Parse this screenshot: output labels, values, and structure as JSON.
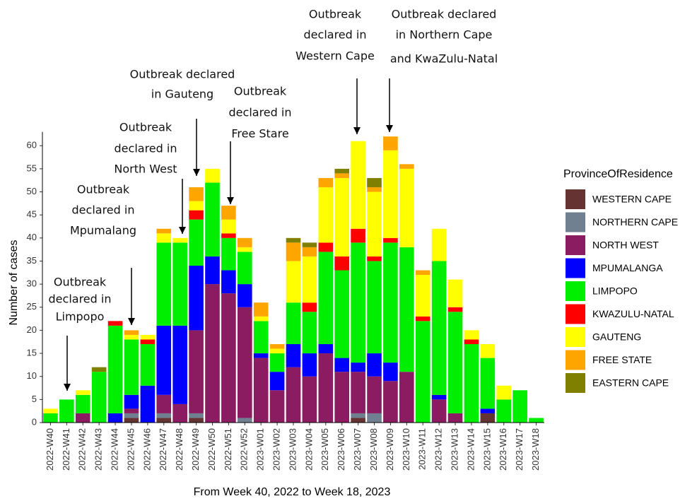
{
  "chart_data": {
    "type": "stacked-bar",
    "x_label": "From Week 40, 2022 to Week 18, 2023",
    "y_label": "Number of cases",
    "legend_title": "ProvinceOfResidence",
    "categories": [
      "2022-W40",
      "2022-W41",
      "2022-W42",
      "2022-W43",
      "2022-W44",
      "2022-W45",
      "2022-W46",
      "2022-W47",
      "2022-W48",
      "2022-W49",
      "2022-W50",
      "2022-W51",
      "2022-W52",
      "2023-W01",
      "2023-W02",
      "2023-W03",
      "2023-W04",
      "2023-W05",
      "2023-W06",
      "2023-W07",
      "2023-W08",
      "2023-W09",
      "2023-W10",
      "2023-W11",
      "2023-W12",
      "2023-W13",
      "2023-W14",
      "2023-W15",
      "2023-W16",
      "2023-W17",
      "2023-W18"
    ],
    "series": [
      {
        "name": "WESTERN CAPE",
        "color": "#663333",
        "values": [
          0,
          0,
          0,
          0,
          0,
          1,
          0,
          1,
          0,
          1,
          0,
          0,
          0,
          0,
          0,
          0,
          0,
          0,
          0,
          1,
          0,
          0,
          0,
          0,
          0,
          0,
          0,
          2,
          0,
          0,
          0
        ]
      },
      {
        "name": "NORTHERN CAPE",
        "color": "#708090",
        "values": [
          0,
          0,
          0,
          0,
          0,
          1,
          0,
          1,
          0,
          1,
          0,
          0,
          1,
          0,
          0,
          0,
          0,
          0,
          0,
          1,
          2,
          0,
          0,
          0,
          0,
          0,
          0,
          0,
          0,
          0,
          0
        ]
      },
      {
        "name": "NORTH WEST",
        "color": "#8b1c62",
        "values": [
          0,
          0,
          2,
          0,
          0,
          1,
          0,
          4,
          4,
          18,
          30,
          28,
          24,
          14,
          7,
          12,
          10,
          15,
          11,
          9,
          8,
          9,
          11,
          0,
          5,
          2,
          0,
          0,
          0,
          0,
          0
        ]
      },
      {
        "name": "MPUMALANGA",
        "color": "#0000ff",
        "values": [
          0,
          0,
          0,
          0,
          2,
          3,
          8,
          15,
          17,
          14,
          6,
          5,
          5,
          1,
          4,
          5,
          5,
          2,
          3,
          2,
          5,
          4,
          0,
          0,
          1,
          0,
          0,
          1,
          0,
          0,
          0
        ]
      },
      {
        "name": "LIMPOPO",
        "color": "#00ee00",
        "values": [
          2,
          5,
          4,
          11,
          19,
          12,
          9,
          18,
          18,
          10,
          16,
          7,
          7,
          7,
          4,
          9,
          9,
          20,
          19,
          26,
          20,
          26,
          27,
          22,
          29,
          22,
          17,
          11,
          5,
          7,
          1
        ]
      },
      {
        "name": "KWAZULU-NATAL",
        "color": "#ff0000",
        "values": [
          0,
          0,
          0,
          0,
          1,
          0,
          1,
          0,
          0,
          2,
          0,
          1,
          0,
          0,
          0,
          0,
          2,
          2,
          3,
          3,
          1,
          1,
          0,
          1,
          0,
          1,
          1,
          0,
          0,
          0,
          0
        ]
      },
      {
        "name": "GAUTENG",
        "color": "#ffff00",
        "values": [
          1,
          0,
          1,
          0,
          0,
          1,
          1,
          2,
          1,
          2,
          3,
          3,
          1,
          1,
          1,
          9,
          10,
          12,
          17,
          19,
          14,
          19,
          17,
          9,
          7,
          6,
          2,
          3,
          3,
          0,
          0
        ]
      },
      {
        "name": "FREE STATE",
        "color": "#ffa500",
        "values": [
          0,
          0,
          0,
          0,
          0,
          1,
          0,
          1,
          0,
          3,
          0,
          3,
          2,
          3,
          1,
          4,
          2,
          2,
          1,
          0,
          1,
          3,
          1,
          1,
          0,
          0,
          0,
          0,
          0,
          0,
          0
        ]
      },
      {
        "name": "EASTERN CAPE",
        "color": "#808000",
        "values": [
          0,
          0,
          0,
          1,
          0,
          0,
          0,
          0,
          0,
          0,
          0,
          0,
          0,
          0,
          0,
          1,
          1,
          0,
          1,
          0,
          2,
          0,
          0,
          0,
          0,
          0,
          0,
          0,
          0,
          0,
          0
        ]
      }
    ],
    "ylim": [
      0,
      63
    ],
    "yticks": [
      0,
      5,
      10,
      15,
      20,
      25,
      30,
      35,
      40,
      45,
      50,
      55,
      60
    ],
    "annotations": [
      {
        "lines": [
          "Outbreak",
          "declared in",
          "Limpopo"
        ]
      },
      {
        "lines": [
          "Outbreak",
          "declared in",
          "Mpumalang"
        ]
      },
      {
        "lines": [
          "Outbreak",
          "declared in",
          "North West"
        ]
      },
      {
        "lines": [
          "Outbreak declared",
          "in Gauteng"
        ]
      },
      {
        "lines": [
          "Outbreak",
          "declared in",
          "Free Stare"
        ]
      },
      {
        "lines": [
          "Outbreak",
          "declared in",
          "Western Cape"
        ]
      },
      {
        "lines": [
          "Outbreak declared",
          "in Northern Cape",
          "and KwaZulu-Natal"
        ]
      }
    ]
  }
}
